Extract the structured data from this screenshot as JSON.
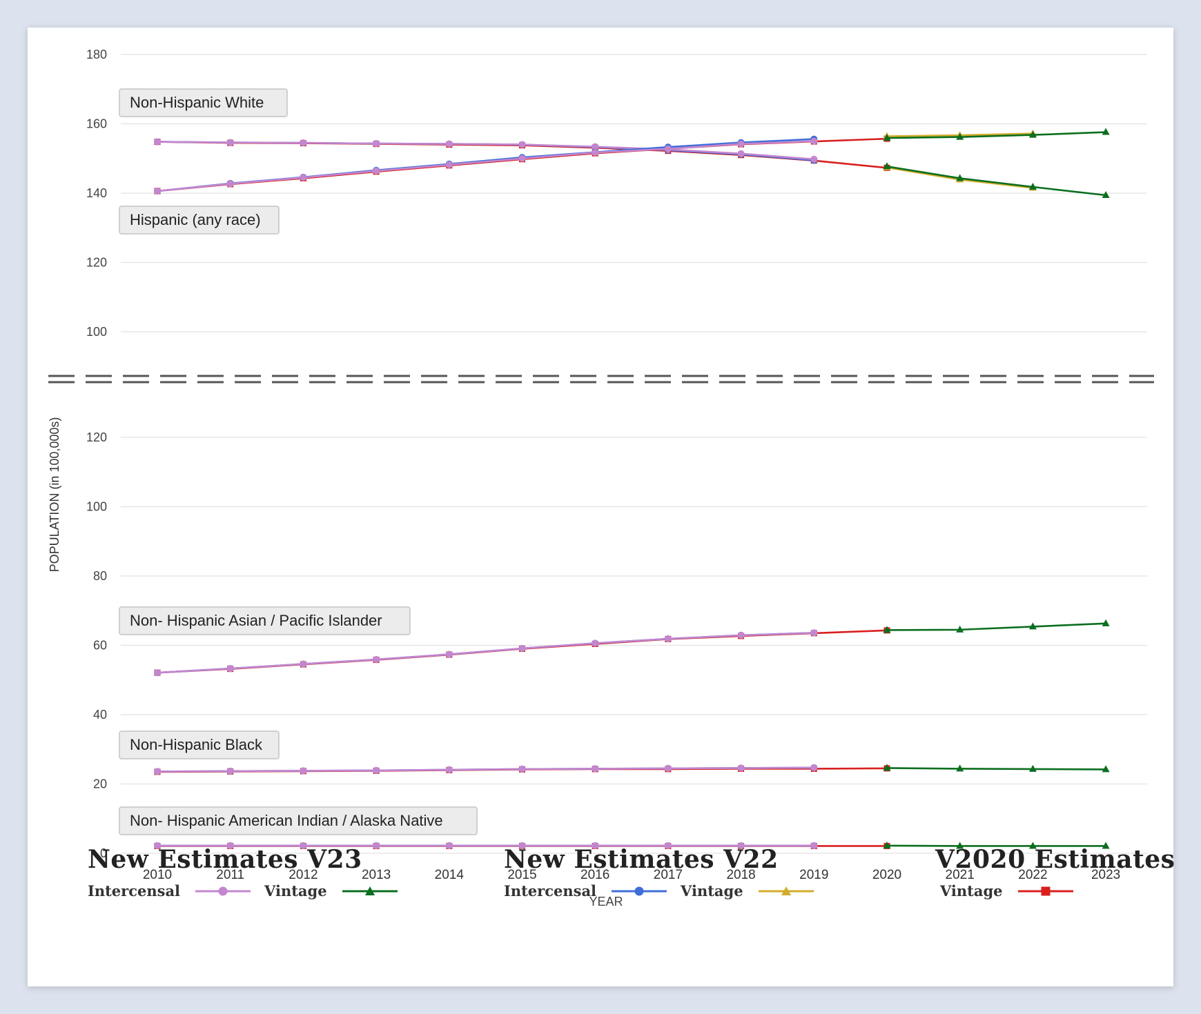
{
  "chart_data": {
    "type": "line",
    "ylabel": "POPULATION (in 100,000s)",
    "xlabel": "YEAR",
    "x": [
      "2010",
      "2011",
      "2012",
      "2013",
      "2014",
      "2015",
      "2016",
      "2017",
      "2018",
      "2019",
      "2020",
      "2021",
      "2022",
      "2023"
    ],
    "upper_panel": {
      "ylim": [
        100,
        180
      ],
      "yticks": [
        100,
        120,
        140,
        160,
        180
      ]
    },
    "lower_panel": {
      "ylim": [
        0,
        120
      ],
      "yticks": [
        0,
        20,
        40,
        60,
        80,
        100,
        120
      ]
    },
    "axis_break": true,
    "grid": true,
    "groups": [
      {
        "label": "Non-Hispanic White",
        "panel": "upper",
        "series": [
          {
            "key": "v23_intercensal",
            "values": [
              154.8,
              154.6,
              154.5,
              154.3,
              154.2,
              154.0,
              153.4,
              152.6,
              151.4,
              149.8,
              null,
              null,
              null,
              null
            ]
          },
          {
            "key": "v22_intercensal",
            "values": [
              154.8,
              154.6,
              154.5,
              154.3,
              154.2,
              154.0,
              153.3,
              152.4,
              151.2,
              149.5,
              null,
              null,
              null,
              null
            ]
          },
          {
            "key": "v2020_vintage",
            "values": [
              154.8,
              154.5,
              154.4,
              154.2,
              154.0,
              153.8,
              153.1,
              152.2,
              151.0,
              149.4,
              147.3,
              null,
              null,
              null
            ]
          },
          {
            "key": "v22_vintage",
            "values": [
              null,
              null,
              null,
              null,
              null,
              null,
              null,
              null,
              null,
              null,
              147.4,
              143.9,
              141.5,
              null
            ]
          },
          {
            "key": "v23_vintage",
            "values": [
              null,
              null,
              null,
              null,
              null,
              null,
              null,
              null,
              null,
              null,
              147.7,
              144.3,
              141.8,
              139.4
            ]
          }
        ]
      },
      {
        "label": "Hispanic (any race)",
        "panel": "upper",
        "series": [
          {
            "key": "v23_intercensal",
            "values": [
              140.6,
              142.7,
              144.5,
              146.4,
              148.2,
              150.0,
              151.7,
              152.8,
              154.2,
              155.0,
              null,
              null,
              null,
              null
            ]
          },
          {
            "key": "v22_intercensal",
            "values": [
              140.6,
              142.8,
              144.6,
              146.6,
              148.4,
              150.3,
              151.8,
              153.3,
              154.6,
              155.6,
              null,
              null,
              null,
              null
            ]
          },
          {
            "key": "v2020_vintage",
            "values": [
              140.6,
              142.6,
              144.3,
              146.2,
              148.0,
              149.8,
              151.5,
              152.8,
              154.1,
              154.9,
              155.7,
              null,
              null,
              null
            ]
          },
          {
            "key": "v22_vintage",
            "values": [
              null,
              null,
              null,
              null,
              null,
              null,
              null,
              null,
              null,
              null,
              156.4,
              156.7,
              157.2,
              null
            ]
          },
          {
            "key": "v23_vintage",
            "values": [
              null,
              null,
              null,
              null,
              null,
              null,
              null,
              null,
              null,
              null,
              155.9,
              156.2,
              156.8,
              157.6
            ]
          }
        ]
      },
      {
        "label": "Non- Hispanic Asian / Pacific Islander",
        "panel": "lower",
        "series": [
          {
            "key": "v23_intercensal",
            "values": [
              52.1,
              53.3,
              54.6,
              55.9,
              57.4,
              59.1,
              60.6,
              61.9,
              62.9,
              63.6,
              null,
              null,
              null,
              null
            ]
          },
          {
            "key": "v22_intercensal",
            "values": [
              52.1,
              53.3,
              54.6,
              55.9,
              57.4,
              59.1,
              60.6,
              61.9,
              62.9,
              63.6,
              null,
              null,
              null,
              null
            ]
          },
          {
            "key": "v2020_vintage",
            "values": [
              52.1,
              53.2,
              54.5,
              55.8,
              57.3,
              59.0,
              60.4,
              61.8,
              62.7,
              63.5,
              64.3,
              null,
              null,
              null
            ]
          },
          {
            "key": "v23_vintage",
            "values": [
              null,
              null,
              null,
              null,
              null,
              null,
              null,
              null,
              null,
              null,
              64.4,
              64.5,
              65.4,
              66.3
            ]
          }
        ]
      },
      {
        "label": "Non-Hispanic Black",
        "panel": "lower",
        "series": [
          {
            "key": "v23_intercensal",
            "values": [
              23.6,
              23.7,
              23.8,
              23.9,
              24.1,
              24.3,
              24.4,
              24.5,
              24.6,
              24.7,
              null,
              null,
              null,
              null
            ]
          },
          {
            "key": "v22_intercensal",
            "values": [
              23.6,
              23.7,
              23.8,
              23.9,
              24.1,
              24.3,
              24.4,
              24.5,
              24.6,
              24.7,
              null,
              null,
              null,
              null
            ]
          },
          {
            "key": "v2020_vintage",
            "values": [
              23.5,
              23.6,
              23.7,
              23.8,
              24.0,
              24.2,
              24.3,
              24.3,
              24.4,
              24.4,
              24.5,
              null,
              null,
              null
            ]
          },
          {
            "key": "v23_vintage",
            "values": [
              null,
              null,
              null,
              null,
              null,
              null,
              null,
              null,
              null,
              null,
              24.6,
              24.4,
              24.3,
              24.2
            ]
          }
        ]
      },
      {
        "label": "Non- Hispanic American Indian / Alaska Native",
        "panel": "lower",
        "series": [
          {
            "key": "v23_intercensal",
            "values": [
              2.2,
              2.2,
              2.2,
              2.2,
              2.2,
              2.2,
              2.2,
              2.2,
              2.2,
              2.2,
              null,
              null,
              null,
              null
            ]
          },
          {
            "key": "v22_intercensal",
            "values": [
              2.2,
              2.2,
              2.2,
              2.2,
              2.2,
              2.2,
              2.2,
              2.2,
              2.2,
              2.2,
              null,
              null,
              null,
              null
            ]
          },
          {
            "key": "v2020_vintage",
            "values": [
              2.1,
              2.1,
              2.1,
              2.1,
              2.1,
              2.1,
              2.1,
              2.1,
              2.1,
              2.1,
              2.1,
              null,
              null,
              null
            ]
          },
          {
            "key": "v23_vintage",
            "values": [
              null,
              null,
              null,
              null,
              null,
              null,
              null,
              null,
              null,
              null,
              2.2,
              2.1,
              2.1,
              2.1
            ]
          }
        ]
      }
    ],
    "series_styles": {
      "v23_intercensal": {
        "color": "#c386cf",
        "marker": "circle"
      },
      "v23_vintage": {
        "color": "#0b6e1f",
        "marker": "triangle"
      },
      "v22_intercensal": {
        "color": "#3f6ed8",
        "marker": "circle"
      },
      "v22_vintage": {
        "color": "#d3ac2b",
        "marker": "triangle"
      },
      "v2020_vintage": {
        "color": "#d8201f",
        "marker": "square"
      }
    }
  },
  "legend": {
    "v23": {
      "title": "New Estimates V23",
      "intercensal": "Intercensal",
      "vintage": "Vintage"
    },
    "v22": {
      "title": "New Estimates V22",
      "intercensal": "Intercensal",
      "vintage": "Vintage"
    },
    "v2020": {
      "title": "V2020 Estimates",
      "vintage": "Vintage"
    }
  }
}
